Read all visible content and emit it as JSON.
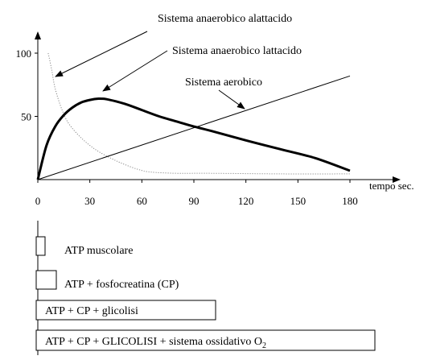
{
  "chart_data": {
    "type": "line",
    "xlabel": "tempo  sec.",
    "ylabel": "",
    "title": "",
    "xlim": [
      0,
      190
    ],
    "ylim": [
      0,
      100
    ],
    "x_ticks": [
      0,
      30,
      60,
      90,
      120,
      150,
      180
    ],
    "y_ticks": [
      50,
      100
    ],
    "grid": false,
    "series": [
      {
        "name": "Sistema anaerobico alattacido",
        "style": "dotted",
        "color": "#888888",
        "points": [
          [
            6,
            100
          ],
          [
            8,
            87
          ],
          [
            10,
            72
          ],
          [
            14,
            55
          ],
          [
            18,
            44
          ],
          [
            25,
            33
          ],
          [
            33,
            24
          ],
          [
            42,
            17
          ],
          [
            50,
            12
          ],
          [
            58,
            8
          ],
          [
            65,
            6
          ],
          [
            80,
            5
          ],
          [
            100,
            5
          ],
          [
            140,
            4.5
          ],
          [
            180,
            4.5
          ]
        ]
      },
      {
        "name": "Sistema anaerobico lattacido",
        "style": "bold",
        "color": "#000000",
        "points": [
          [
            0,
            0
          ],
          [
            5,
            27
          ],
          [
            10,
            42
          ],
          [
            15,
            51
          ],
          [
            20,
            57
          ],
          [
            25,
            61
          ],
          [
            30,
            63
          ],
          [
            35,
            64
          ],
          [
            40,
            63.5
          ],
          [
            50,
            60
          ],
          [
            60,
            55
          ],
          [
            70,
            50
          ],
          [
            80,
            46
          ],
          [
            90,
            42
          ],
          [
            100,
            38.5
          ],
          [
            120,
            31
          ],
          [
            140,
            24
          ],
          [
            160,
            17
          ],
          [
            180,
            7
          ]
        ]
      },
      {
        "name": "Sistema aerobico",
        "style": "solid",
        "color": "#000000",
        "points": [
          [
            0,
            0
          ],
          [
            180,
            82
          ]
        ]
      }
    ],
    "annotations": [
      {
        "text": "Sistema anaerobico alattacido"
      },
      {
        "text": "Sistema anaerobico lattacido"
      },
      {
        "text": "Sistema aerobico"
      }
    ],
    "energy_bars": [
      {
        "label": "ATP muscolare"
      },
      {
        "label": "ATP + fosfocreatina (CP)"
      },
      {
        "label": "ATP + CP + glicolisi"
      },
      {
        "label": "ATP + CP + GLICOLISI + sistema ossidativo O",
        "subscript": "2"
      }
    ]
  }
}
